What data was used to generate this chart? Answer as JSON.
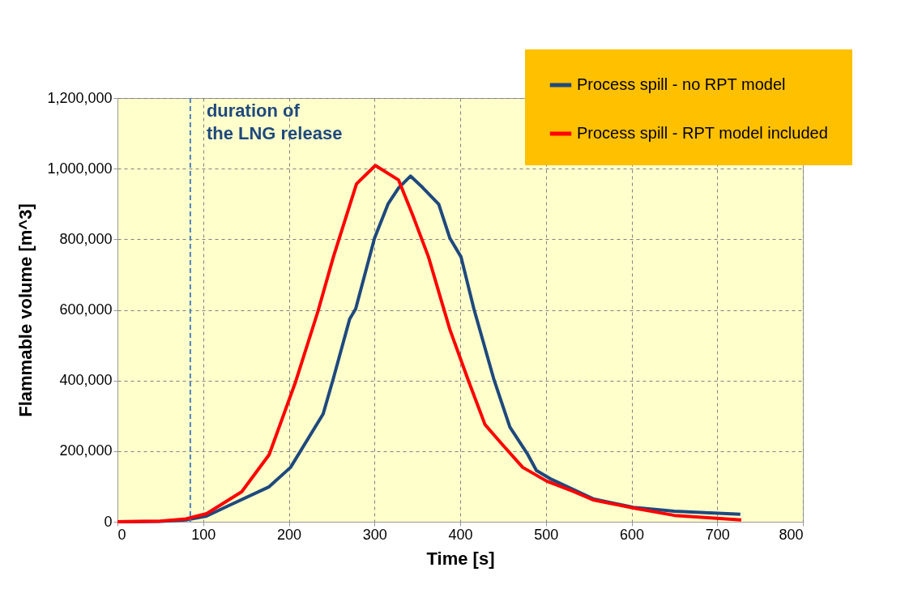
{
  "chart_data": {
    "type": "line",
    "xlabel": "Time [s]",
    "ylabel": "Flammable volume [m^3]",
    "xlim": [
      0,
      800
    ],
    "xticks": [
      0,
      100,
      200,
      300,
      400,
      500,
      600,
      700,
      800
    ],
    "ylim": [
      0,
      1200000
    ],
    "yticks": [
      0,
      {
        "value": 200000,
        "label": "200,000"
      },
      {
        "value": 400000,
        "label": "400,000"
      },
      {
        "value": 600000,
        "label": "600,000"
      },
      {
        "value": 800000,
        "label": "800,000"
      },
      {
        "value": 1000000,
        "label": "1,000,000"
      },
      {
        "value": 1200000,
        "label": "1,200,000"
      }
    ],
    "grid": true,
    "legend": "top right",
    "line_style": "solid",
    "marker": "none",
    "ref_lines": [
      {
        "axis": "x",
        "value": 85,
        "label": "duration of\nthe LNG release",
        "color": "#4f81bd",
        "line_style": "dashed"
      }
    ],
    "series": [
      {
        "name": "Process spill - no RPT model",
        "color": "#1f497d",
        "x": [
          0,
          50,
          80,
          104,
          130,
          177,
          202,
          240,
          252,
          271,
          278,
          300,
          316,
          328,
          342,
          356,
          375,
          388,
          401,
          416,
          439,
          458,
          479,
          489,
          505,
          555,
          602,
          650,
          727
        ],
        "values": [
          0,
          1000,
          5000,
          16000,
          46000,
          99000,
          154000,
          305000,
          406000,
          574000,
          603000,
          803000,
          901000,
          945000,
          979000,
          947000,
          899000,
          803000,
          750000,
          603000,
          406000,
          268000,
          190000,
          145000,
          122000,
          65000,
          41000,
          30000,
          21000
        ]
      },
      {
        "name": "Process spill - RPT model included",
        "color": "#ff0000",
        "x": [
          0,
          50,
          80,
          104,
          145,
          177,
          208,
          234,
          252,
          279,
          301,
          328,
          344,
          363,
          378,
          388,
          410,
          429,
          448,
          473,
          501,
          533,
          555,
          602,
          650,
          728
        ],
        "values": [
          0,
          2000,
          8000,
          23000,
          85000,
          190000,
          397000,
          596000,
          750000,
          957000,
          1009000,
          968000,
          872000,
          750000,
          626000,
          544000,
          397000,
          275000,
          222000,
          154000,
          115000,
          85000,
          62000,
          39000,
          18000,
          5000
        ]
      }
    ]
  }
}
